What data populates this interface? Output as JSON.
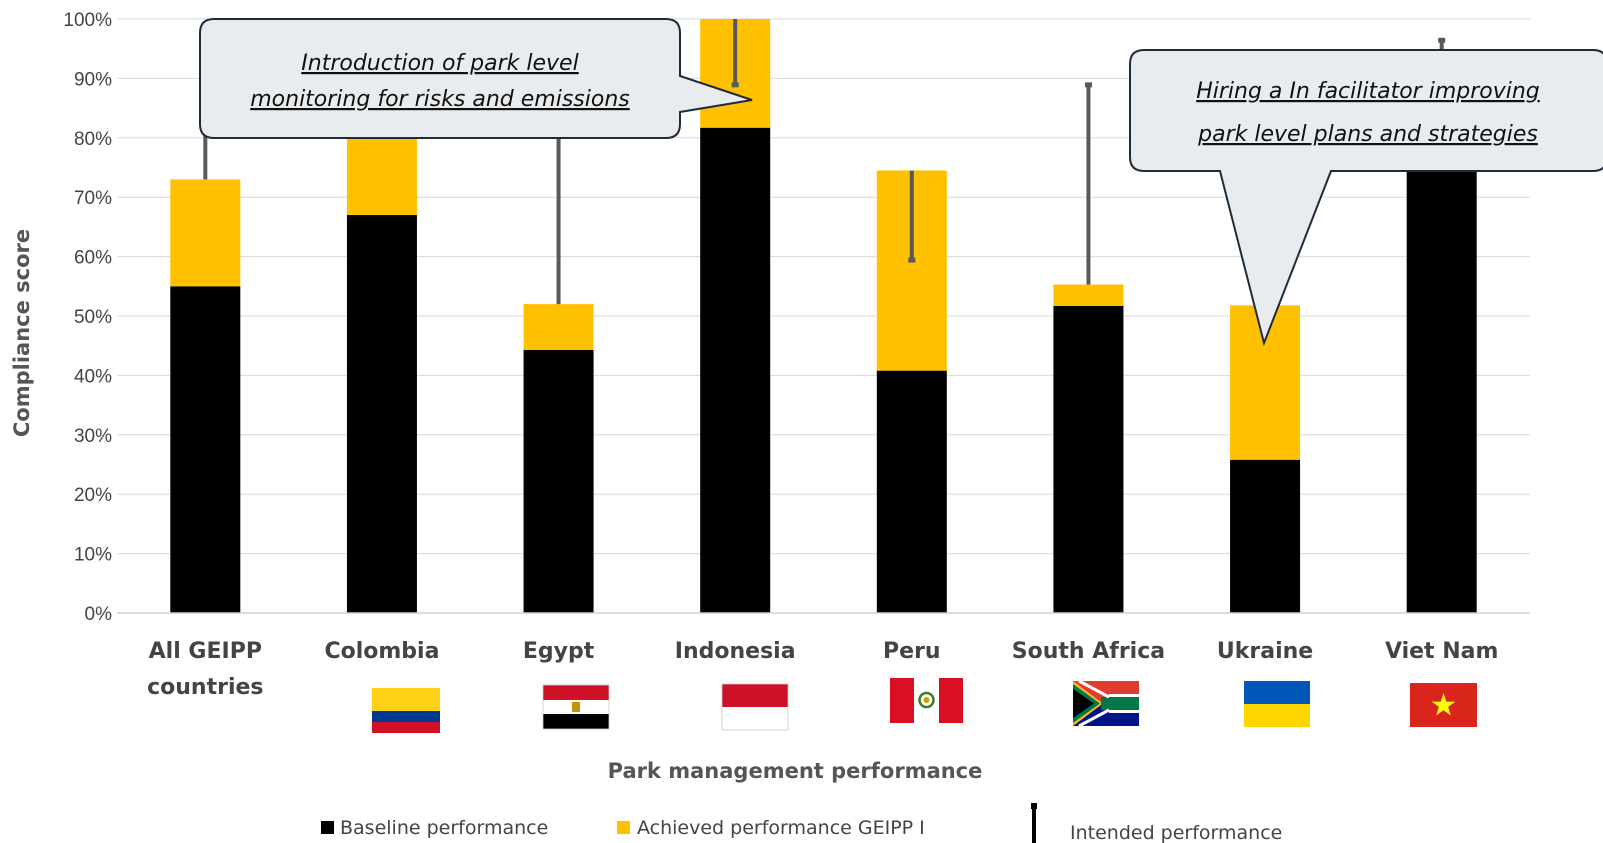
{
  "chart_data": {
    "type": "bar",
    "stacked": true,
    "xlabel": "Park management performance",
    "ylabel": "Compliance score",
    "ylim": [
      0,
      100
    ],
    "yticks": [
      "0%",
      "10%",
      "20%",
      "30%",
      "40%",
      "50%",
      "60%",
      "70%",
      "80%",
      "90%",
      "100%"
    ],
    "grid": true,
    "legend_position": "bottom",
    "categories": [
      [
        "All GEIPP",
        "countries"
      ],
      [
        "Colombia"
      ],
      [
        "Egypt"
      ],
      [
        "Indonesia"
      ],
      [
        "Peru"
      ],
      [
        "South Africa"
      ],
      [
        "Ukraine"
      ],
      [
        "Viet Nam"
      ]
    ],
    "series": [
      {
        "name": "Baseline performance",
        "color": "#000000",
        "values": [
          55,
          67,
          44.3,
          81.7,
          40.8,
          51.7,
          25.8,
          75
        ]
      },
      {
        "name": "Achieved performance GEIPP I",
        "color": "#FFC000",
        "values": [
          18,
          13,
          7.7,
          18.3,
          33.7,
          3.6,
          26,
          0
        ]
      }
    ],
    "intended_performance": {
      "name": "Intended performance",
      "color": "#595959",
      "values": [
        82,
        85,
        88,
        89,
        59.5,
        89,
        null,
        96.5
      ]
    },
    "flags": [
      "",
      "colombia-flag",
      "egypt-flag",
      "indonesia-flag",
      "peru-flag",
      "south-africa-flag",
      "ukraine-flag",
      "viet-nam-flag"
    ],
    "annotations": [
      {
        "lines": [
          "Introduction of park level",
          "monitoring for risks and emissions"
        ]
      },
      {
        "lines": [
          "Hiring a In facilitator improving",
          "park level plans and strategies"
        ]
      }
    ]
  }
}
